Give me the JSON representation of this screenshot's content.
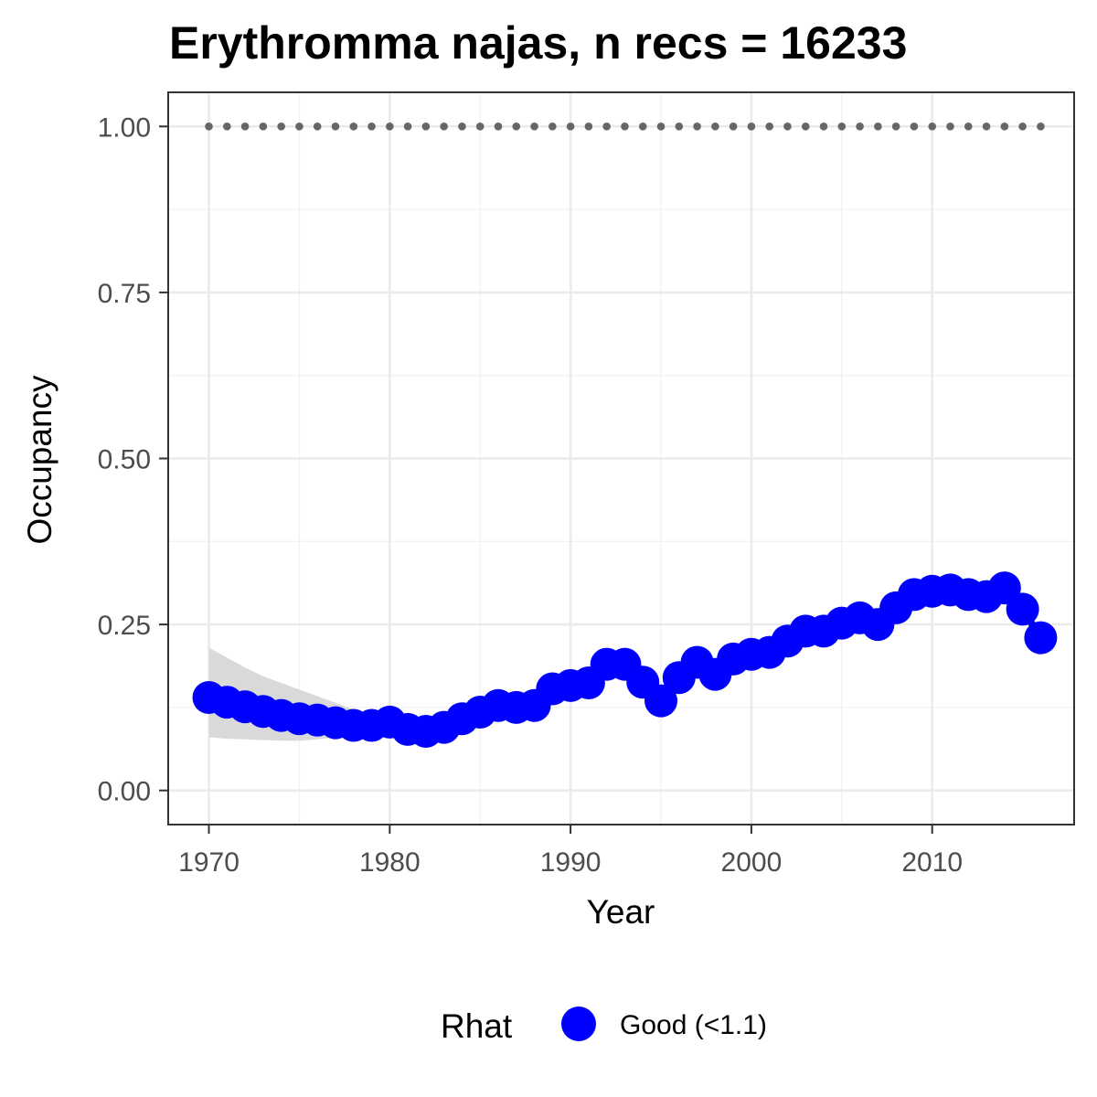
{
  "chart_data": {
    "type": "line",
    "title": "Erythromma najas, n recs = 16233",
    "xlabel": "Year",
    "ylabel": "Occupancy",
    "xlim": [
      1967.8,
      2017.8
    ],
    "ylim": [
      -0.05,
      1.05
    ],
    "x_ticks": [
      {
        "value": 1970,
        "label": "1970"
      },
      {
        "value": 1980,
        "label": "1980"
      },
      {
        "value": 1990,
        "label": "1990"
      },
      {
        "value": 2000,
        "label": "2000"
      },
      {
        "value": 2010,
        "label": "2010"
      }
    ],
    "y_ticks": [
      {
        "value": 0.0,
        "label": "0.00"
      },
      {
        "value": 0.25,
        "label": "0.25"
      },
      {
        "value": 0.5,
        "label": "0.50"
      },
      {
        "value": 0.75,
        "label": "0.75"
      },
      {
        "value": 1.0,
        "label": "1.00"
      }
    ],
    "grid": true,
    "legend": {
      "title": "Rhat",
      "position": "bottom",
      "entries": [
        {
          "label": "Good (<1.1)",
          "color": "#0000ff"
        }
      ]
    },
    "series": [
      {
        "name": "Good (<1.1)",
        "color": "#0000ff",
        "x": [
          1970,
          1971,
          1972,
          1973,
          1974,
          1975,
          1976,
          1977,
          1978,
          1979,
          1980,
          1981,
          1982,
          1983,
          1984,
          1985,
          1986,
          1987,
          1988,
          1989,
          1990,
          1991,
          1992,
          1993,
          1994,
          1995,
          1996,
          1997,
          1998,
          1999,
          2000,
          2001,
          2002,
          2003,
          2004,
          2005,
          2006,
          2007,
          2008,
          2009,
          2010,
          2011,
          2012,
          2013,
          2014,
          2015,
          2016
        ],
        "y": [
          0.14,
          0.133,
          0.126,
          0.119,
          0.113,
          0.108,
          0.106,
          0.102,
          0.098,
          0.098,
          0.103,
          0.092,
          0.089,
          0.095,
          0.108,
          0.118,
          0.128,
          0.125,
          0.128,
          0.153,
          0.158,
          0.162,
          0.19,
          0.19,
          0.163,
          0.135,
          0.17,
          0.193,
          0.175,
          0.198,
          0.205,
          0.208,
          0.225,
          0.24,
          0.24,
          0.252,
          0.26,
          0.25,
          0.275,
          0.295,
          0.3,
          0.302,
          0.295,
          0.292,
          0.305,
          0.273,
          0.23
        ]
      }
    ],
    "ribbon": {
      "color": "#d9d9d9",
      "x": [
        1970,
        1971,
        1972,
        1973,
        1974,
        1975,
        1976,
        1977,
        1978,
        1979,
        1980
      ],
      "lower": [
        0.08,
        0.078,
        0.077,
        0.076,
        0.075,
        0.075,
        0.077,
        0.08,
        0.085,
        0.09,
        0.095
      ],
      "upper": [
        0.215,
        0.2,
        0.185,
        0.172,
        0.162,
        0.152,
        0.142,
        0.132,
        0.122,
        0.115,
        0.112
      ]
    },
    "reference_points": {
      "color": "#666666",
      "x": [
        1970,
        1971,
        1972,
        1973,
        1974,
        1975,
        1976,
        1977,
        1978,
        1979,
        1980,
        1981,
        1982,
        1983,
        1984,
        1985,
        1986,
        1987,
        1988,
        1989,
        1990,
        1991,
        1992,
        1993,
        1994,
        1995,
        1996,
        1997,
        1998,
        1999,
        2000,
        2001,
        2002,
        2003,
        2004,
        2005,
        2006,
        2007,
        2008,
        2009,
        2010,
        2011,
        2012,
        2013,
        2014,
        2015,
        2016
      ],
      "y": 1.0
    }
  }
}
